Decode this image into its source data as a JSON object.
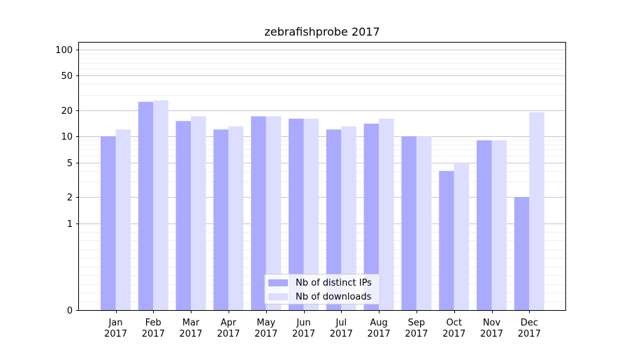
{
  "chart_data": {
    "type": "bar",
    "title": "zebrafishprobe 2017",
    "xlabel": "",
    "ylabel": "",
    "y_scale": "symlog",
    "ylim": [
      0,
      120
    ],
    "y_ticks": [
      0,
      1,
      2,
      5,
      10,
      20,
      50,
      100
    ],
    "grid": true,
    "legend_position": "bottom-center",
    "categories": [
      "Jan\n2017",
      "Feb\n2017",
      "Mar\n2017",
      "Apr\n2017",
      "May\n2017",
      "Jun\n2017",
      "Jul\n2017",
      "Aug\n2017",
      "Sep\n2017",
      "Oct\n2017",
      "Nov\n2017",
      "Dec\n2017"
    ],
    "series": [
      {
        "name": "Nb of distinct IPs",
        "color": "#aaaaff",
        "values": [
          10,
          25,
          15,
          12,
          17,
          16,
          12,
          14,
          10,
          4,
          9,
          2
        ]
      },
      {
        "name": "Nb of downloads",
        "color": "#ddddff",
        "values": [
          12,
          26,
          17,
          13,
          17,
          16,
          13,
          16,
          10,
          5,
          9,
          19
        ]
      }
    ]
  }
}
